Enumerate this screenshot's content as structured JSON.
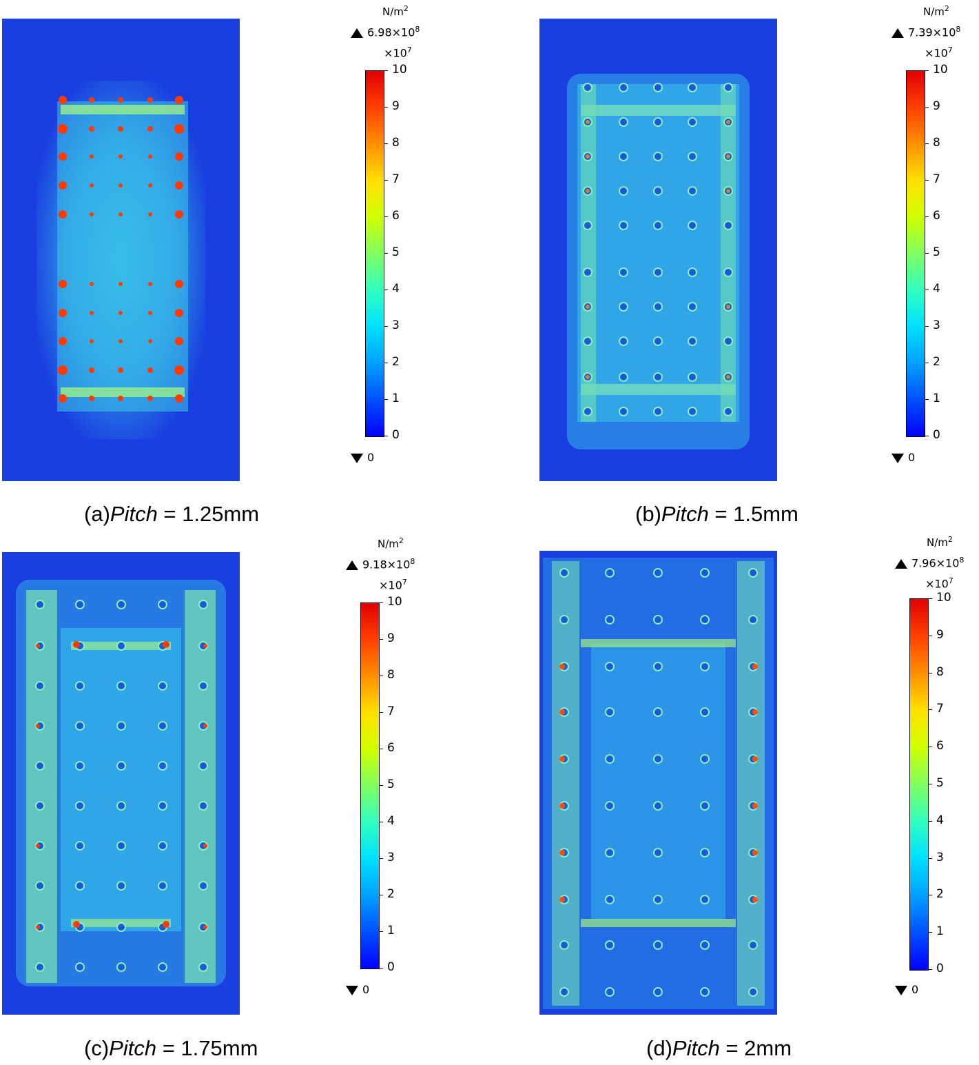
{
  "panels": [
    {
      "id": "a",
      "caption_prefix": "(a)",
      "caption_italic": "Pitch",
      "caption_suffix": " = 1.25mm",
      "max_value": "6.98×10",
      "max_exp": "8",
      "unit": "N/m",
      "unit_exp": "2",
      "scale": "×10",
      "scale_exp": "7",
      "min_value": "0",
      "ticks": [
        "10",
        "9",
        "8",
        "7",
        "6",
        "5",
        "4",
        "3",
        "2",
        "1",
        "0"
      ]
    },
    {
      "id": "b",
      "caption_prefix": "(b)",
      "caption_italic": "Pitch",
      "caption_suffix": " = 1.5mm",
      "max_value": "7.39×10",
      "max_exp": "8",
      "unit": "N/m",
      "unit_exp": "2",
      "scale": "×10",
      "scale_exp": "7",
      "min_value": "0",
      "ticks": [
        "10",
        "9",
        "8",
        "7",
        "6",
        "5",
        "4",
        "3",
        "2",
        "1",
        "0"
      ]
    },
    {
      "id": "c",
      "caption_prefix": "(c)",
      "caption_italic": "Pitch",
      "caption_suffix": " = 1.75mm",
      "max_value": "9.18×10",
      "max_exp": "8",
      "unit": "N/m",
      "unit_exp": "2",
      "scale": "×10",
      "scale_exp": "7",
      "min_value": "0",
      "ticks": [
        "10",
        "9",
        "8",
        "7",
        "6",
        "5",
        "4",
        "3",
        "2",
        "1",
        "0"
      ]
    },
    {
      "id": "d",
      "caption_prefix": "(d)",
      "caption_italic": "Pitch",
      "caption_suffix": " = 2mm",
      "max_value": "7.96×10",
      "max_exp": "8",
      "unit": "N/m",
      "unit_exp": "2",
      "scale": "×10",
      "scale_exp": "7",
      "min_value": "0",
      "ticks": [
        "10",
        "9",
        "8",
        "7",
        "6",
        "5",
        "4",
        "3",
        "2",
        "1",
        "0"
      ]
    }
  ],
  "colors": {
    "field_low": "#1a3fe0",
    "field_mid": "#2fb8e8",
    "hot": "#ff3a00",
    "via": "#1858d0"
  }
}
